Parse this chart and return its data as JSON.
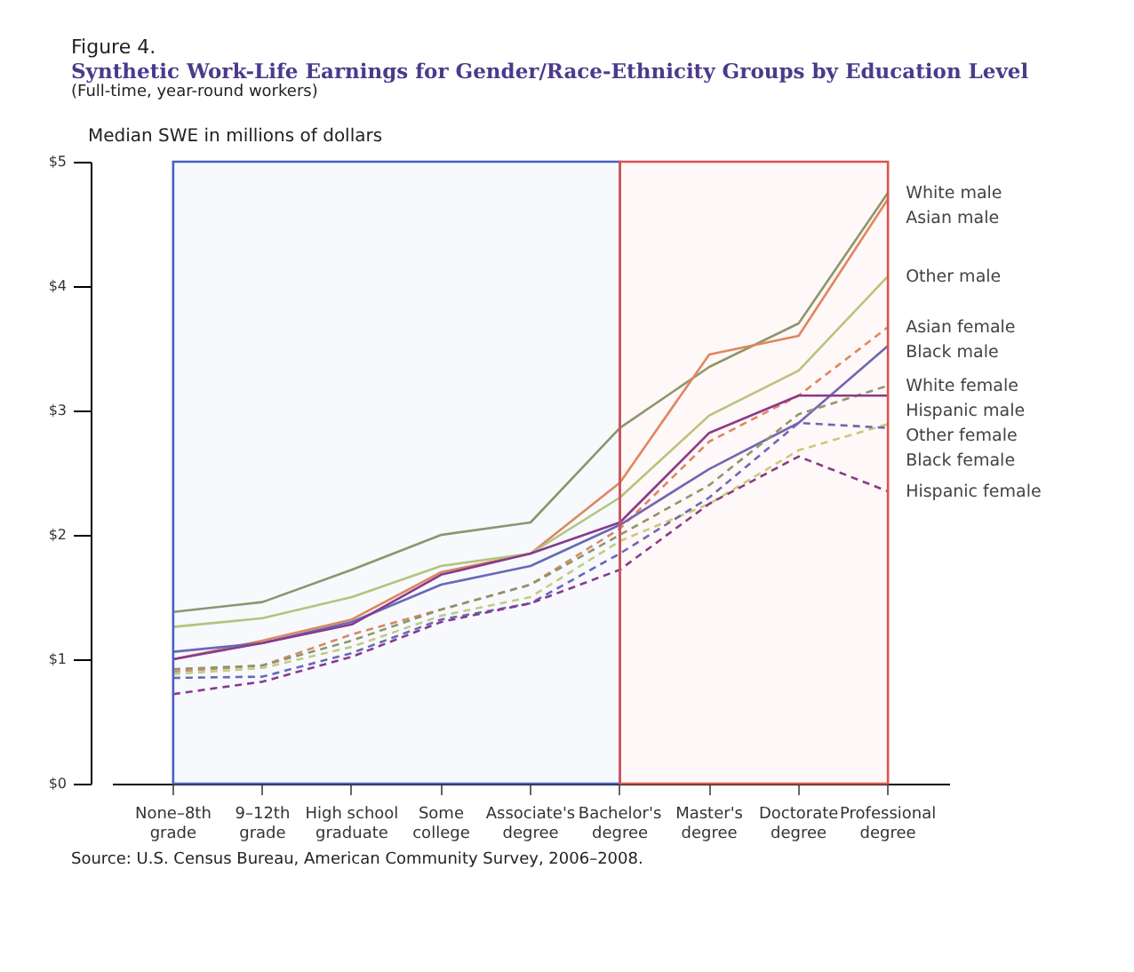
{
  "chart_data": {
    "type": "line",
    "title": "Synthetic Work-Life Earnings for Gender/Race-Ethnicity Groups by Education Level",
    "subtitle": "(Full-time, year-round workers)",
    "ylabel": "Median SWE in millions of dollars",
    "annotations": [
      "Figure 4.",
      "Source: U.S. Census Bureau, American Community Survey, 2006–2008."
    ],
    "categories": [
      "None–8th grade",
      "9–12th grade",
      "High school graduate",
      "Some college",
      "Associate's degree",
      "Bachelor's degree",
      "Master's degree",
      "Doctorate degree",
      "Professional degree"
    ],
    "ylim": [
      0,
      5
    ],
    "yticks": [
      {
        "value": 0,
        "label": "$0"
      },
      {
        "value": 1,
        "label": "$1"
      },
      {
        "value": 2,
        "label": "$2"
      },
      {
        "value": 3,
        "label": "$3"
      },
      {
        "value": 4,
        "label": "$4"
      },
      {
        "value": 5,
        "label": "$5"
      }
    ],
    "grid": false,
    "legend": false,
    "bands": [
      {
        "axis": "x",
        "from": "None–8th grade",
        "to": "Bachelor's degree",
        "color": "#4a5fc0"
      },
      {
        "axis": "x",
        "from": "Bachelor's degree",
        "to": "Professional degree",
        "color": "#d9534f"
      }
    ],
    "series": [
      {
        "name": "White male",
        "color": "#8c9a6c",
        "line_style": "solid",
        "values": [
          1.38,
          1.46,
          1.72,
          2.0,
          2.1,
          2.86,
          3.35,
          3.7,
          4.75
        ]
      },
      {
        "name": "Asian male",
        "color": "#e08a5e",
        "line_style": "solid",
        "values": [
          1.0,
          1.15,
          1.32,
          1.7,
          1.85,
          2.42,
          3.45,
          3.6,
          4.7
        ]
      },
      {
        "name": "Other male",
        "color": "#b8c87c",
        "line_style": "solid",
        "values": [
          1.26,
          1.33,
          1.5,
          1.75,
          1.85,
          2.3,
          2.96,
          3.32,
          4.08
        ]
      },
      {
        "name": "Asian female",
        "color": "#e08a5e",
        "line_style": "dashed",
        "values": [
          0.9,
          0.95,
          1.2,
          1.4,
          1.6,
          2.05,
          2.75,
          3.12,
          3.67
        ]
      },
      {
        "name": "Black male",
        "color": "#6a6ab8",
        "line_style": "solid",
        "values": [
          1.06,
          1.13,
          1.3,
          1.6,
          1.75,
          2.08,
          2.53,
          2.9,
          3.52
        ]
      },
      {
        "name": "White female",
        "color": "#8c9a6c",
        "line_style": "dashed",
        "values": [
          0.92,
          0.95,
          1.15,
          1.4,
          1.6,
          2.0,
          2.4,
          2.97,
          3.2
        ]
      },
      {
        "name": "Hispanic male",
        "color": "#8a3a8a",
        "line_style": "solid",
        "values": [
          1.0,
          1.13,
          1.28,
          1.68,
          1.85,
          2.1,
          2.82,
          3.12,
          3.12
        ]
      },
      {
        "name": "Other female",
        "color": "#c8d080",
        "line_style": "dashed",
        "values": [
          0.88,
          0.93,
          1.1,
          1.35,
          1.5,
          1.95,
          2.25,
          2.68,
          2.89
        ]
      },
      {
        "name": "Black female",
        "color": "#6a6ab8",
        "line_style": "dashed",
        "values": [
          0.85,
          0.86,
          1.05,
          1.32,
          1.45,
          1.85,
          2.3,
          2.9,
          2.86
        ]
      },
      {
        "name": "Hispanic female",
        "color": "#8a3a8a",
        "line_style": "dashed",
        "values": [
          0.72,
          0.82,
          1.02,
          1.3,
          1.45,
          1.72,
          2.25,
          2.63,
          2.35
        ]
      }
    ]
  }
}
